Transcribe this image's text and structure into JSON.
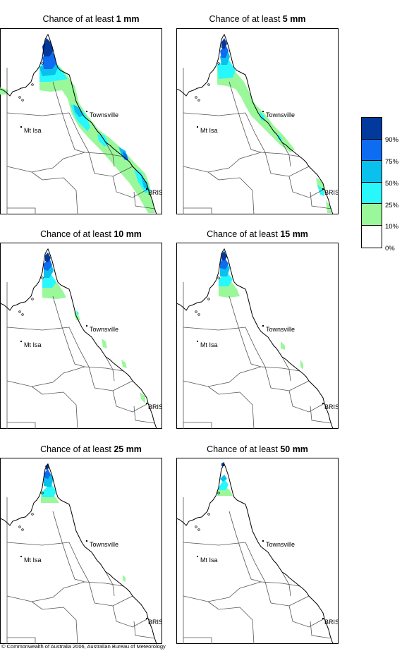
{
  "panels": [
    {
      "title_prefix": "Chance of at least",
      "amount": "1 mm",
      "coverage": "1mm"
    },
    {
      "title_prefix": "Chance of at least",
      "amount": "5 mm",
      "coverage": "5mm"
    },
    {
      "title_prefix": "Chance of at least",
      "amount": "10 mm",
      "coverage": "10mm"
    },
    {
      "title_prefix": "Chance of at least",
      "amount": "15 mm",
      "coverage": "15mm"
    },
    {
      "title_prefix": "Chance of at least",
      "amount": "25 mm",
      "coverage": "25mm"
    },
    {
      "title_prefix": "Chance of at least",
      "amount": "50 mm",
      "coverage": "50mm"
    }
  ],
  "places": {
    "townsville": "Townsville",
    "mt_isa": "Mt Isa",
    "bris": "BRIS"
  },
  "legend": {
    "colors": [
      "#02399c",
      "#0e6cf0",
      "#0ac0ec",
      "#28f8fb",
      "#9af89b",
      "#ffffff"
    ],
    "labels": [
      "90%",
      "75%",
      "50%",
      "25%",
      "10%",
      "0%"
    ]
  },
  "copyright": "© Commonwealth of Australia 2006, Australian Bureau of Meteorology"
}
